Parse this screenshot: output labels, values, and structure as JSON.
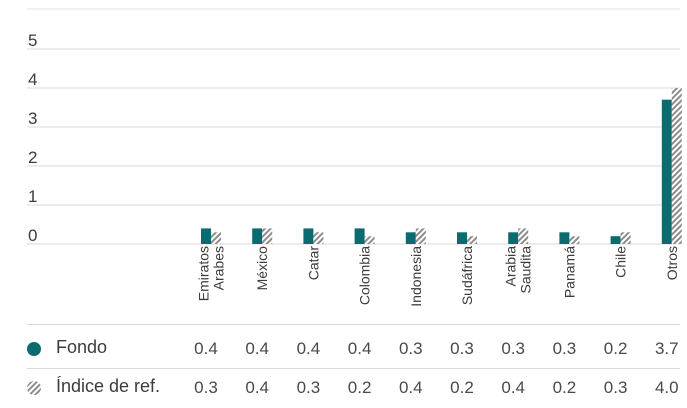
{
  "chart_data": {
    "type": "bar",
    "categories": [
      [
        "Emiratos",
        "Arabes"
      ],
      [
        "México"
      ],
      [
        "Catar"
      ],
      [
        "Colombia"
      ],
      [
        "Indonesia"
      ],
      [
        "Sudáfrica"
      ],
      [
        "Arabia",
        "Saudita"
      ],
      [
        "Panamá"
      ],
      [
        "Chile"
      ],
      [
        "Otros"
      ]
    ],
    "series": [
      {
        "name": "Fondo",
        "values": [
          0.4,
          0.4,
          0.4,
          0.4,
          0.3,
          0.3,
          0.3,
          0.3,
          0.2,
          3.7
        ],
        "color": "#0b6b6f",
        "fill": "solid"
      },
      {
        "name": "Índice de ref.",
        "values": [
          0.3,
          0.4,
          0.3,
          0.2,
          0.4,
          0.2,
          0.4,
          0.2,
          0.3,
          4.0
        ],
        "color": "#8c8c8c",
        "fill": "hatched"
      }
    ],
    "value_labels": [
      [
        "0.4",
        "0.4",
        "0.4",
        "0.4",
        "0.3",
        "0.3",
        "0.3",
        "0.3",
        "0.2",
        "3.7"
      ],
      [
        "0.3",
        "0.4",
        "0.3",
        "0.2",
        "0.4",
        "0.2",
        "0.4",
        "0.2",
        "0.3",
        "4.0"
      ]
    ],
    "yticks": [
      "0",
      "1",
      "2",
      "3",
      "4",
      "5"
    ],
    "ylim": [
      0,
      5
    ],
    "grid": true,
    "legend": "table-below"
  }
}
